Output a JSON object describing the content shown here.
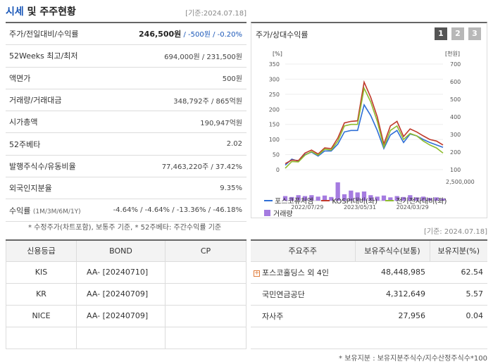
{
  "header": {
    "title_blue": "시세",
    "title_rest": " 및 주주현황",
    "ref_date": "[기준:2024.07.18]"
  },
  "market": [
    {
      "label": "주가/전일대비/수익률",
      "value_main": "246,500원",
      "value_rest": " / -500원 / -0.20%"
    },
    {
      "label": "52Weeks 최고/최저",
      "value": "694,000원 / 231,500원"
    },
    {
      "label": "액면가",
      "value": "500원"
    },
    {
      "label": "거래량/거래대금",
      "value": "348,792주 / 865억원"
    },
    {
      "label": "시가총액",
      "value": "190,947억원"
    },
    {
      "label": "52주베타",
      "value": "2.02"
    },
    {
      "label": "발행주식수/유동비율",
      "value": "77,463,220주 / 37.42%"
    },
    {
      "label": "외국인지분율",
      "value": "9.35%"
    },
    {
      "label": "수익률",
      "label_small": "(1M/3M/6M/1Y)",
      "value": "-4.64% / -4.64% / -13.36% / -46.18%"
    }
  ],
  "footnote1": "* 수정주가(차트포함), 보통주 기준, * 52주베타: 주간수익률 기준",
  "ref_date2": "[기준: 2024.07.18]",
  "chart_panel": {
    "title": "주가/상대수익률",
    "pages": [
      "1",
      "2",
      "3"
    ]
  },
  "chart_data": {
    "type": "line",
    "title": "주가/상대수익률",
    "x_ticks": [
      "2022/07/29",
      "2023/05/31",
      "2024/03/29"
    ],
    "left_axis": {
      "unit": "[%]",
      "range": [
        0,
        350
      ],
      "ticks": [
        0,
        50,
        100,
        150,
        200,
        250,
        300,
        350
      ]
    },
    "right_axis": {
      "unit": "[천원]",
      "range": [
        100,
        700
      ],
      "ticks": [
        100,
        200,
        300,
        400,
        500,
        600,
        700
      ]
    },
    "volume_axis": {
      "label": "2,500,000"
    },
    "series": [
      {
        "name": "포스코퓨처엠",
        "color": "#2f6fd6",
        "values": [
          15,
          35,
          28,
          50,
          58,
          45,
          62,
          62,
          85,
          125,
          130,
          130,
          215,
          180,
          130,
          70,
          115,
          130,
          90,
          118,
          112,
          100,
          90,
          82,
          74
        ]
      },
      {
        "name": "KOSPI대비(좌)",
        "color": "#c0392b",
        "values": [
          20,
          32,
          30,
          55,
          65,
          52,
          72,
          70,
          105,
          155,
          160,
          162,
          290,
          240,
          175,
          85,
          145,
          160,
          110,
          135,
          125,
          112,
          100,
          95,
          82
        ]
      },
      {
        "name": "전기전자대비(좌)",
        "color": "#8fbc2f",
        "values": [
          5,
          27,
          26,
          48,
          60,
          48,
          68,
          65,
          95,
          145,
          150,
          150,
          270,
          225,
          160,
          75,
          130,
          145,
          100,
          120,
          112,
          95,
          82,
          72,
          55
        ]
      }
    ],
    "volume": {
      "name": "거래량",
      "color": "#a57be0",
      "values": [
        0.25,
        0.2,
        0.3,
        0.25,
        0.3,
        0.22,
        0.28,
        0.2,
        1.0,
        0.35,
        0.55,
        0.45,
        0.5,
        0.3,
        0.22,
        0.28,
        0.18,
        0.25,
        0.2,
        0.3,
        0.18,
        0.22,
        0.15,
        0.18,
        0.12
      ]
    }
  },
  "credit": {
    "headers": [
      "신용등급",
      "BOND",
      "CP"
    ],
    "rows": [
      {
        "agency": "KIS",
        "bond": "AA-  [20240710]",
        "cp": ""
      },
      {
        "agency": "KR",
        "bond": "AA-  [20240709]",
        "cp": ""
      },
      {
        "agency": "NICE",
        "bond": "AA-  [20240709]",
        "cp": ""
      },
      {
        "agency": "",
        "bond": "",
        "cp": ""
      }
    ]
  },
  "holders": {
    "headers": [
      "주요주주",
      "보유주식수(보통)",
      "보유지분(%)"
    ],
    "rows": [
      {
        "name": "포스코홀딩스 외 4인",
        "shares": "48,448,985",
        "pct": "62.54",
        "expandable": true
      },
      {
        "name": "국민연금공단",
        "shares": "4,312,649",
        "pct": "5.57",
        "expandable": false
      },
      {
        "name": "자사주",
        "shares": "27,956",
        "pct": "0.04",
        "expandable": false
      },
      {
        "name": "",
        "shares": "",
        "pct": "",
        "expandable": false
      }
    ]
  },
  "footnote2": "* 보유지분 : 보유지분주식수/지수산정주식수*100"
}
